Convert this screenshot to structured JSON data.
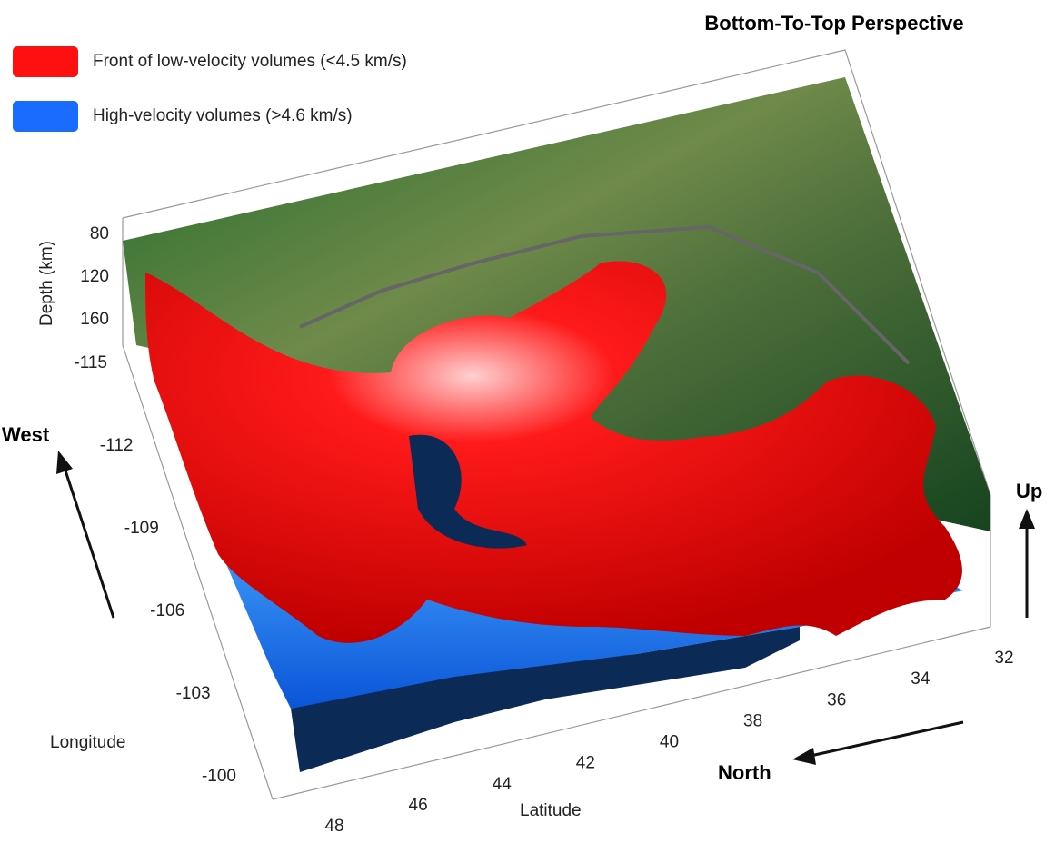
{
  "title": "Bottom-To-Top Perspective",
  "legend": [
    {
      "label": "Front of low-velocity volumes (<4.5 km/s)",
      "color": "#ff1010"
    },
    {
      "label": "High-velocity volumes (>4.6 km/s)",
      "color": "#1a6cff"
    }
  ],
  "axes": {
    "depth": {
      "label": "Depth (km)",
      "ticks": [
        80,
        120,
        160
      ]
    },
    "longitude": {
      "label": "Longitude",
      "ticks": [
        -115,
        -112,
        -109,
        -106,
        -103,
        -100
      ]
    },
    "latitude": {
      "label": "Latitude",
      "ticks": [
        48,
        46,
        44,
        42,
        40,
        38,
        36,
        34,
        32
      ]
    }
  },
  "directions": {
    "west": "West",
    "up": "Up",
    "north": "North"
  }
}
